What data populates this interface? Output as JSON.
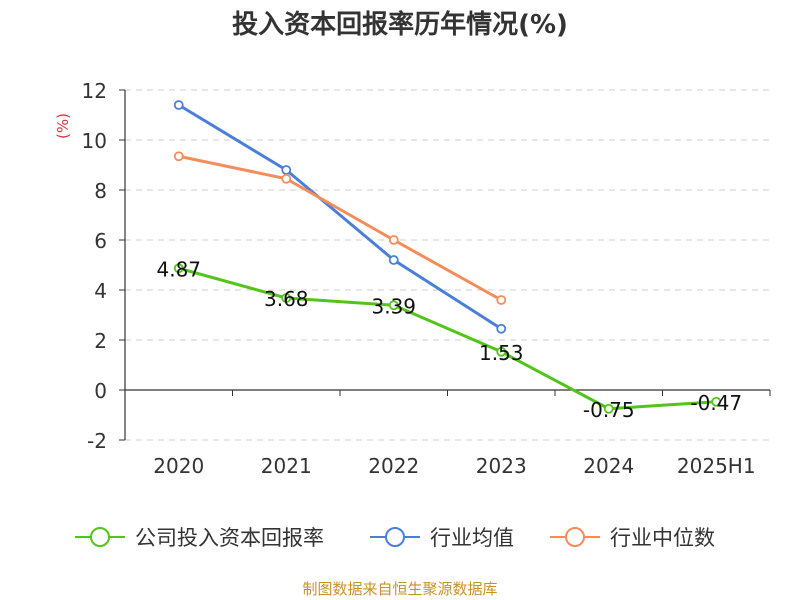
{
  "chart_data": {
    "type": "line",
    "title": "投入资本回报率历年情况(%)",
    "ylabel": "(%)",
    "xlabel": "",
    "categories": [
      "2020",
      "2021",
      "2022",
      "2023",
      "2024",
      "2025H1"
    ],
    "ylim": [
      -2,
      12
    ],
    "yticks": [
      -2,
      0,
      2,
      4,
      6,
      8,
      10,
      12
    ],
    "grid": true,
    "legend_position": "bottom",
    "series": [
      {
        "name": "公司投入资本回报率",
        "color": "#52c41a",
        "values": [
          4.87,
          3.68,
          3.39,
          1.53,
          -0.75,
          -0.47
        ],
        "labels": [
          "4.87",
          "3.68",
          "3.39",
          "1.53",
          "-0.75",
          "-0.47"
        ]
      },
      {
        "name": "行业均值",
        "color": "#4a7fd9",
        "values": [
          11.4,
          8.8,
          5.2,
          2.45,
          null,
          null
        ]
      },
      {
        "name": "行业中位数",
        "color": "#f58d5b",
        "values": [
          9.35,
          8.45,
          6.0,
          3.6,
          null,
          null
        ]
      }
    ]
  },
  "source_text": "制图数据来自恒生聚源数据库"
}
